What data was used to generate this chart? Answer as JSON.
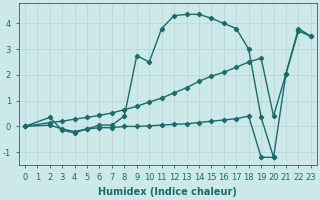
{
  "xlabel": "Humidex (Indice chaleur)",
  "xlim": [
    -0.5,
    23.5
  ],
  "ylim": [
    -1.5,
    4.8
  ],
  "yticks": [
    -1,
    0,
    1,
    2,
    3,
    4
  ],
  "xticks": [
    0,
    1,
    2,
    3,
    4,
    5,
    6,
    7,
    8,
    9,
    10,
    11,
    12,
    13,
    14,
    15,
    16,
    17,
    18,
    19,
    20,
    21,
    22,
    23
  ],
  "bg_color": "#cce8e8",
  "line_color": "#1a6b6b",
  "grid_color": "#b8d8d8",
  "curve1_x": [
    0,
    2,
    3,
    4,
    5,
    6,
    7,
    8,
    9,
    10,
    11,
    12,
    13,
    14,
    15,
    16,
    17,
    18,
    19,
    20,
    21,
    22,
    23
  ],
  "curve1_y": [
    0.0,
    0.35,
    -0.15,
    -0.25,
    -0.1,
    0.05,
    0.05,
    0.4,
    2.75,
    2.5,
    3.8,
    4.3,
    4.35,
    4.35,
    4.2,
    4.0,
    3.8,
    3.0,
    0.35,
    -1.2,
    2.05,
    3.8,
    3.5
  ],
  "curve2_x": [
    0,
    2,
    3,
    4,
    5,
    6,
    7,
    8,
    9,
    10,
    11,
    12,
    13,
    14,
    15,
    16,
    17,
    18,
    19,
    20,
    21,
    22,
    23
  ],
  "curve2_y": [
    0.0,
    0.15,
    0.2,
    0.28,
    0.35,
    0.43,
    0.52,
    0.65,
    0.78,
    0.95,
    1.1,
    1.3,
    1.5,
    1.75,
    1.95,
    2.1,
    2.3,
    2.5,
    2.65,
    0.4,
    2.05,
    3.7,
    3.5
  ],
  "curve3_x": [
    0,
    2,
    3,
    4,
    5,
    6,
    7,
    8,
    9,
    10,
    11,
    12,
    13,
    14,
    15,
    16,
    17,
    18,
    19,
    20
  ],
  "curve3_y": [
    0.0,
    0.05,
    -0.1,
    -0.2,
    -0.1,
    -0.05,
    -0.05,
    0.0,
    0.0,
    0.02,
    0.05,
    0.08,
    0.1,
    0.15,
    0.2,
    0.25,
    0.3,
    0.4,
    -1.2,
    -1.2
  ],
  "tick_fontsize": 6,
  "label_fontsize": 7
}
